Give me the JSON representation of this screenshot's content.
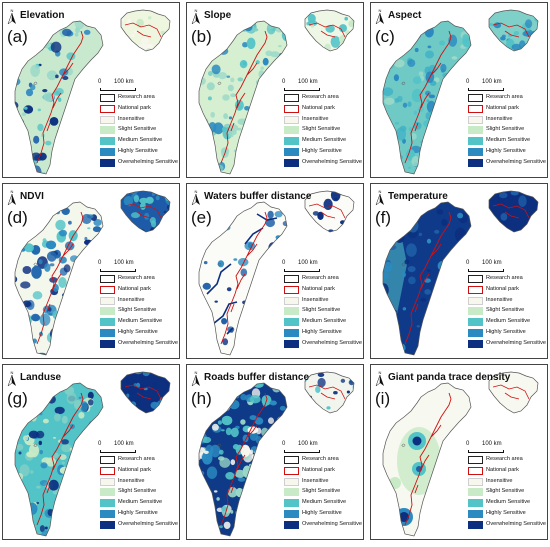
{
  "panels": [
    {
      "title": "Elevation",
      "label": "(a)",
      "style": "elev"
    },
    {
      "title": "Slope",
      "label": "(b)",
      "style": "slope"
    },
    {
      "title": "Aspect",
      "label": "(c)",
      "style": "aspect"
    },
    {
      "title": "NDVI",
      "label": "(d)",
      "style": "ndvi"
    },
    {
      "title": "Waters buffer distance",
      "label": "(e)",
      "style": "waters"
    },
    {
      "title": "Temperature",
      "label": "(f)",
      "style": "temp"
    },
    {
      "title": "Landuse",
      "label": "(g)",
      "style": "land"
    },
    {
      "title": "Roads buffer distance",
      "label": "(h)",
      "style": "roads"
    },
    {
      "title": "Giant panda trace density",
      "label": "(i)",
      "style": "panda"
    }
  ],
  "north_label": "N",
  "scale": {
    "start": "0",
    "end": "100 km"
  },
  "legend": [
    {
      "label": "Research area",
      "fill": "#ffffff",
      "stroke": "#222222"
    },
    {
      "label": "National park",
      "fill": "#ffffff",
      "stroke": "#d01010"
    },
    {
      "label": "Insensitive",
      "fill": "#f8f7ee",
      "stroke": "#cfcfcf"
    },
    {
      "label": "Slight Sensitive",
      "fill": "#c8eac6",
      "stroke": "#c8eac6"
    },
    {
      "label": "Medium Sensitive",
      "fill": "#52c3c7",
      "stroke": "#52c3c7"
    },
    {
      "label": "Highly Sensitive",
      "fill": "#2b8ac0",
      "stroke": "#2b8ac0"
    },
    {
      "label": "Overwhelming Sensitive",
      "fill": "#0c2f80",
      "stroke": "#0c2f80"
    }
  ]
}
